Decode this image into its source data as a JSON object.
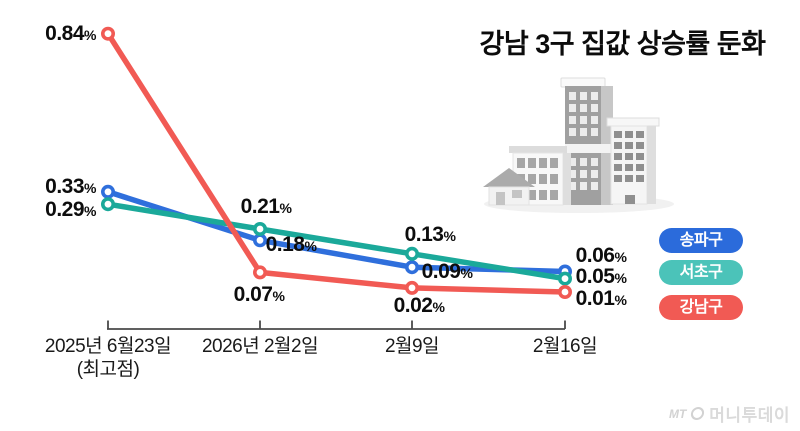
{
  "title": "강남 3구 집값 상승률 둔화",
  "chart_data": {
    "type": "line",
    "title": "강남 3구 집값 상승률 둔화",
    "unit": "%",
    "x_ticks": [
      {
        "label": "2025년 6월23일",
        "sublabel": "(최고점)"
      },
      {
        "label": "2026년 2월2일",
        "sublabel": ""
      },
      {
        "label": "2월9일",
        "sublabel": ""
      },
      {
        "label": "2월16일",
        "sublabel": ""
      }
    ],
    "series": [
      {
        "name": "송파구",
        "color": "#2F6FDC",
        "legend_color": "#2B6BDB",
        "values": [
          0.33,
          0.18,
          0.09,
          0.06
        ]
      },
      {
        "name": "서초구",
        "color": "#1BA99A",
        "legend_color": "#4BC3B9",
        "values": [
          0.29,
          0.21,
          0.13,
          0.05
        ]
      },
      {
        "name": "강남구",
        "color": "#F15A54",
        "legend_color": "#F15A54",
        "values": [
          0.84,
          0.07,
          0.02,
          0.01
        ]
      }
    ],
    "ylim": [
      0,
      0.9
    ],
    "grid": false,
    "legend_position": "right",
    "value_labels": true,
    "marker": "open-circle"
  },
  "axis_color": "#4a4a4a",
  "illustration": "city-buildings-icon",
  "watermark": {
    "prefix": "MT",
    "brand": "머니투데이",
    "logo": "moneytoday-logo-icon"
  }
}
